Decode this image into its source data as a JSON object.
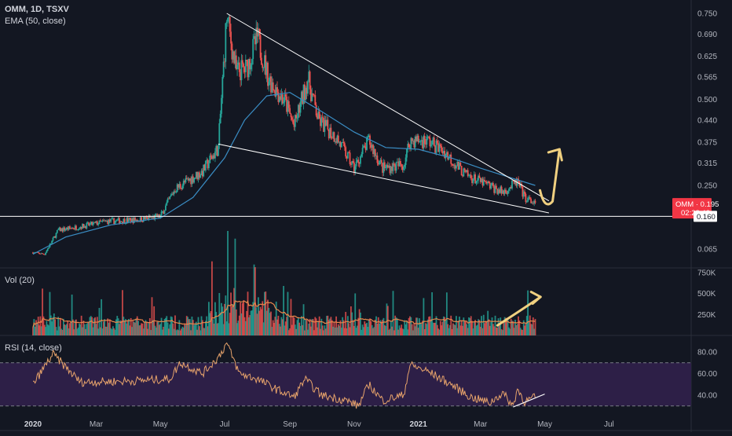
{
  "legend": {
    "symbol_line": "OMM, 1D, TSXV",
    "ema_line": "EMA (50, close)",
    "vol_line": "Vol (20)",
    "rsi_line": "RSI (14, close)"
  },
  "badges": {
    "price_label": "OMM · 0.195",
    "countdown": "02:28:43",
    "support_level": "0.160"
  },
  "colors": {
    "background": "#131722",
    "up": "#26a69a",
    "down": "#ef5350",
    "ema": "#3a8dc4",
    "vol_ma": "#e8874b",
    "rsi_line": "#e7a36b",
    "rsi_band": "#2d1f47",
    "annotation": "#f0d080",
    "trendline": "#ffffff"
  },
  "chart_data": {
    "type": "candlestick",
    "symbol": "OMM",
    "interval": "1D",
    "exchange": "TSXV",
    "x_ticks": [
      "2020",
      "Mar",
      "May",
      "Jul",
      "Sep",
      "Nov",
      "2021",
      "Mar",
      "May",
      "Jul"
    ],
    "price_panel": {
      "y_ticks": [
        0.75,
        0.69,
        0.625,
        0.565,
        0.5,
        0.44,
        0.375,
        0.315,
        0.25,
        0.065
      ],
      "y_tick_labels": [
        "0.750",
        "0.690",
        "0.625",
        "0.565",
        "0.500",
        "0.440",
        "0.375",
        "0.315",
        "0.250",
        "0.065"
      ],
      "anchors": [
        {
          "date": "2020-01-01",
          "price": 0.055
        },
        {
          "date": "2020-01-12",
          "price": 0.05
        },
        {
          "date": "2020-01-25",
          "price": 0.12
        },
        {
          "date": "2020-02-15",
          "price": 0.13
        },
        {
          "date": "2020-03-10",
          "price": 0.145
        },
        {
          "date": "2020-04-10",
          "price": 0.15
        },
        {
          "date": "2020-05-01",
          "price": 0.16
        },
        {
          "date": "2020-05-15",
          "price": 0.24
        },
        {
          "date": "2020-06-10",
          "price": 0.29
        },
        {
          "date": "2020-06-25",
          "price": 0.36
        },
        {
          "date": "2020-07-03",
          "price": 0.74
        },
        {
          "date": "2020-07-12",
          "price": 0.58
        },
        {
          "date": "2020-07-22",
          "price": 0.59
        },
        {
          "date": "2020-08-01",
          "price": 0.68
        },
        {
          "date": "2020-08-12",
          "price": 0.56
        },
        {
          "date": "2020-08-28",
          "price": 0.49
        },
        {
          "date": "2020-09-05",
          "price": 0.42
        },
        {
          "date": "2020-09-18",
          "price": 0.56
        },
        {
          "date": "2020-09-28",
          "price": 0.44
        },
        {
          "date": "2020-10-15",
          "price": 0.39
        },
        {
          "date": "2020-11-01",
          "price": 0.3
        },
        {
          "date": "2020-11-15",
          "price": 0.38
        },
        {
          "date": "2020-11-28",
          "price": 0.3
        },
        {
          "date": "2020-12-18",
          "price": 0.31
        },
        {
          "date": "2020-12-24",
          "price": 0.38
        },
        {
          "date": "2021-01-10",
          "price": 0.38
        },
        {
          "date": "2021-01-25",
          "price": 0.35
        },
        {
          "date": "2021-02-15",
          "price": 0.28
        },
        {
          "date": "2021-03-05",
          "price": 0.255
        },
        {
          "date": "2021-03-22",
          "price": 0.23
        },
        {
          "date": "2021-04-05",
          "price": 0.26
        },
        {
          "date": "2021-04-12",
          "price": 0.215
        },
        {
          "date": "2021-04-22",
          "price": 0.195
        }
      ],
      "ema": [
        {
          "date": "2020-01-01",
          "value": 0.05
        },
        {
          "date": "2020-02-01",
          "value": 0.1
        },
        {
          "date": "2020-03-15",
          "value": 0.135
        },
        {
          "date": "2020-05-01",
          "value": 0.155
        },
        {
          "date": "2020-06-01",
          "value": 0.215
        },
        {
          "date": "2020-07-01",
          "value": 0.33
        },
        {
          "date": "2020-07-20",
          "value": 0.44
        },
        {
          "date": "2020-08-10",
          "value": 0.51
        },
        {
          "date": "2020-09-01",
          "value": 0.52
        },
        {
          "date": "2020-10-01",
          "value": 0.465
        },
        {
          "date": "2020-11-01",
          "value": 0.405
        },
        {
          "date": "2020-12-01",
          "value": 0.36
        },
        {
          "date": "2021-01-01",
          "value": 0.355
        },
        {
          "date": "2021-02-01",
          "value": 0.33
        },
        {
          "date": "2021-03-01",
          "value": 0.3
        },
        {
          "date": "2021-04-01",
          "value": 0.27
        },
        {
          "date": "2021-04-22",
          "value": 0.25
        }
      ],
      "trendlines": [
        {
          "from": {
            "date": "2020-07-03",
            "price": 0.75
          },
          "to": {
            "date": "2021-05-05",
            "price": 0.205
          }
        },
        {
          "from": {
            "date": "2020-06-25",
            "price": 0.37
          },
          "to": {
            "date": "2021-05-05",
            "price": 0.17
          }
        }
      ],
      "horizontal_line": {
        "price": 0.16
      },
      "last_price": 0.195,
      "annotation_arrow": {
        "from": {
          "date": "2021-05-01",
          "price": 0.19
        },
        "to": {
          "date": "2021-05-15",
          "price": 0.355
        }
      }
    },
    "volume_panel": {
      "y_ticks": [
        750000,
        500000,
        250000
      ],
      "y_tick_labels": [
        "750K",
        "500K",
        "250K"
      ]
    },
    "rsi_panel": {
      "y_ticks": [
        80,
        60,
        40
      ],
      "y_tick_labels": [
        "80.00",
        "60.00",
        "40.00"
      ],
      "upper_band": 70,
      "lower_band": 30,
      "anchors": [
        {
          "date": "2020-01-01",
          "value": 50
        },
        {
          "date": "2020-01-20",
          "value": 78
        },
        {
          "date": "2020-02-15",
          "value": 52
        },
        {
          "date": "2020-04-01",
          "value": 53
        },
        {
          "date": "2020-05-10",
          "value": 55
        },
        {
          "date": "2020-05-20",
          "value": 70
        },
        {
          "date": "2020-06-10",
          "value": 60
        },
        {
          "date": "2020-06-25",
          "value": 75
        },
        {
          "date": "2020-07-03",
          "value": 88
        },
        {
          "date": "2020-07-15",
          "value": 60
        },
        {
          "date": "2020-08-01",
          "value": 55
        },
        {
          "date": "2020-08-20",
          "value": 45
        },
        {
          "date": "2020-09-05",
          "value": 38
        },
        {
          "date": "2020-09-15",
          "value": 55
        },
        {
          "date": "2020-10-01",
          "value": 40
        },
        {
          "date": "2020-10-25",
          "value": 35
        },
        {
          "date": "2020-11-05",
          "value": 30
        },
        {
          "date": "2020-11-15",
          "value": 50
        },
        {
          "date": "2020-11-28",
          "value": 35
        },
        {
          "date": "2020-12-18",
          "value": 40
        },
        {
          "date": "2020-12-24",
          "value": 68
        },
        {
          "date": "2021-01-10",
          "value": 62
        },
        {
          "date": "2021-02-01",
          "value": 50
        },
        {
          "date": "2021-02-20",
          "value": 38
        },
        {
          "date": "2021-03-10",
          "value": 33
        },
        {
          "date": "2021-03-22",
          "value": 42
        },
        {
          "date": "2021-04-01",
          "value": 30
        },
        {
          "date": "2021-04-05",
          "value": 46
        },
        {
          "date": "2021-04-12",
          "value": 34
        },
        {
          "date": "2021-04-22",
          "value": 38
        }
      ],
      "divergence_line": {
        "from": {
          "date": "2021-04-01",
          "value": 29
        },
        "to": {
          "date": "2021-05-01",
          "value": 41
        }
      }
    },
    "grid": false
  }
}
